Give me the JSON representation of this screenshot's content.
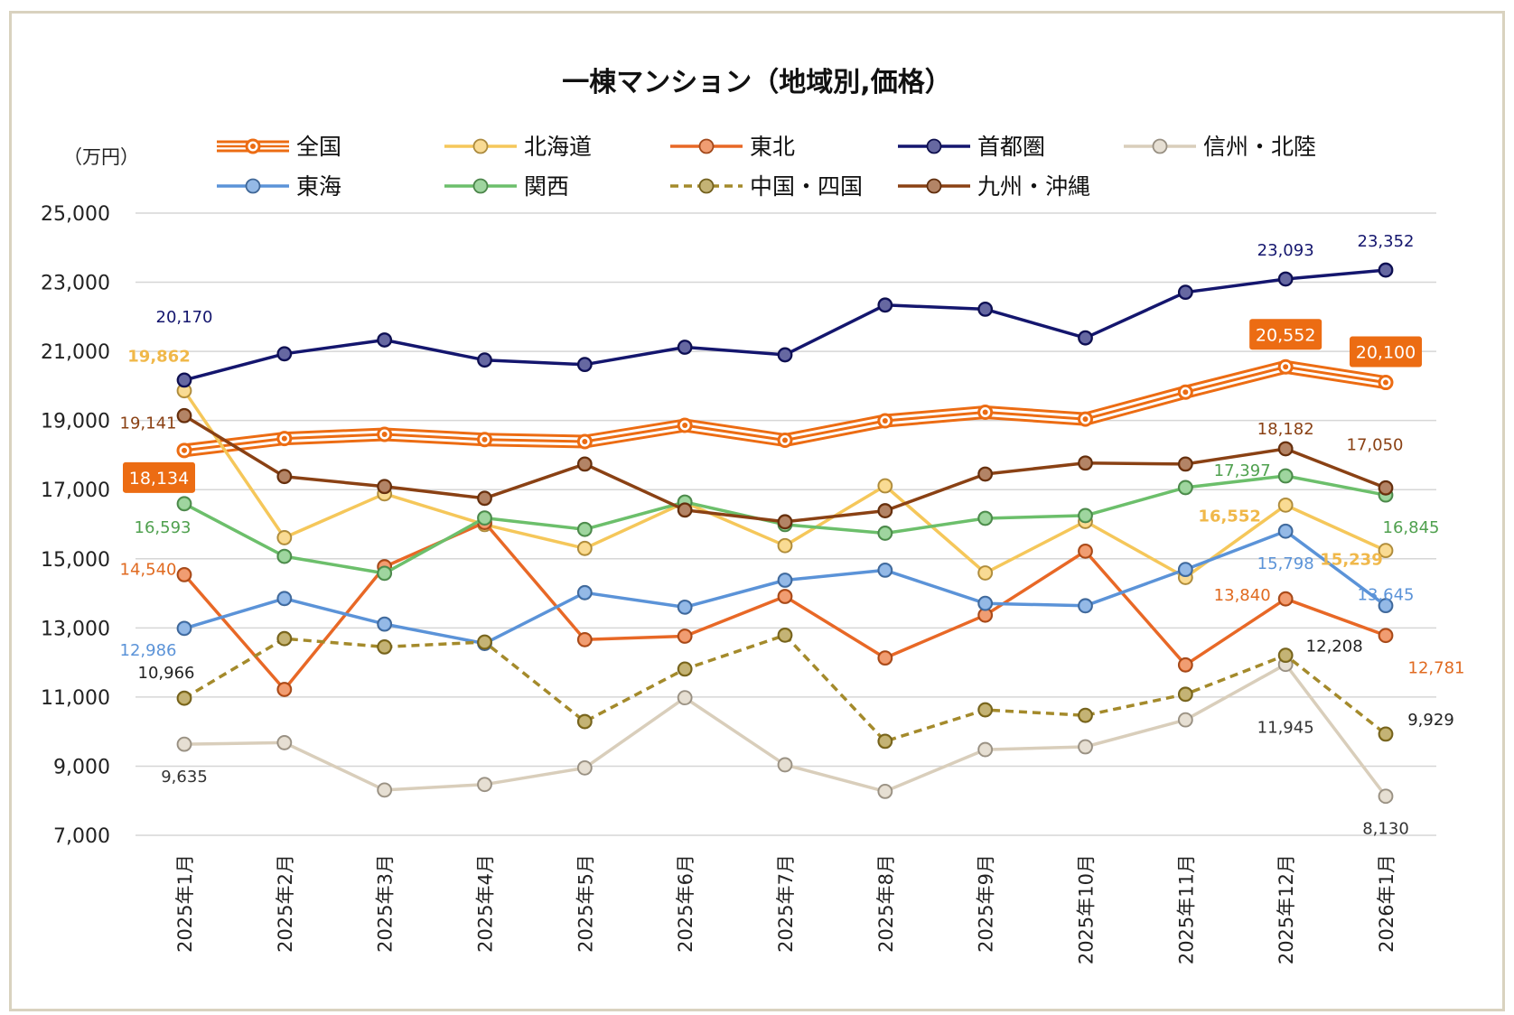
{
  "chart_data": {
    "type": "line",
    "title": "一棟マンション（地域別,価格）",
    "unit_label": "（万円）",
    "ylim": [
      7000,
      25000
    ],
    "yticks": [
      7000,
      9000,
      11000,
      13000,
      15000,
      17000,
      19000,
      21000,
      23000,
      25000
    ],
    "ytick_labels": [
      "7,000",
      "9,000",
      "11,000",
      "13,000",
      "15,000",
      "17,000",
      "19,000",
      "21,000",
      "23,000",
      "25,000"
    ],
    "grid": true,
    "legend_position": "top",
    "categories": [
      "2025年1月",
      "2025年2月",
      "2025年3月",
      "2025年4月",
      "2025年5月",
      "2025年6月",
      "2025年7月",
      "2025年8月",
      "2025年9月",
      "2025年10月",
      "2025年11月",
      "2025年12月",
      "2026年1月"
    ],
    "series": [
      {
        "name": "全国",
        "color": "#ec6c13",
        "style": "triple",
        "values": [
          18134,
          18480,
          18600,
          18450,
          18390,
          18860,
          18430,
          18990,
          19240,
          19040,
          19820,
          20552,
          20100
        ],
        "labels": [
          {
            "i": 0,
            "text": "18,134"
          },
          {
            "i": 11,
            "text": "20,552"
          },
          {
            "i": 12,
            "text": "20,100"
          }
        ]
      },
      {
        "name": "北海道",
        "color": "#f5c75a",
        "style": "solid",
        "values": [
          19862,
          15610,
          16880,
          15990,
          15300,
          16630,
          15380,
          17110,
          14590,
          16080,
          14460,
          16552,
          15239
        ],
        "labels": [
          {
            "i": 0,
            "text": "19,862"
          },
          {
            "i": 11,
            "text": "16,552"
          },
          {
            "i": 12,
            "text": "15,239"
          }
        ]
      },
      {
        "name": "東北",
        "color": "#e86826",
        "style": "solid",
        "values": [
          14540,
          11220,
          14770,
          16050,
          12660,
          12760,
          13910,
          12130,
          13370,
          15220,
          11930,
          13840,
          12781
        ],
        "labels": [
          {
            "i": 0,
            "text": "14,540"
          },
          {
            "i": 11,
            "text": "13,840"
          },
          {
            "i": 12,
            "text": "12,781"
          }
        ]
      },
      {
        "name": "首都圏",
        "color": "#14166e",
        "style": "solid",
        "values": [
          20170,
          20930,
          21330,
          20750,
          20620,
          21120,
          20900,
          22340,
          22220,
          21390,
          22710,
          23093,
          23352
        ],
        "labels": [
          {
            "i": 0,
            "text": "20,170"
          },
          {
            "i": 11,
            "text": "23,093"
          },
          {
            "i": 12,
            "text": "23,352"
          }
        ]
      },
      {
        "name": "信州・北陸",
        "color": "#d9cebb",
        "style": "solid",
        "values": [
          9635,
          9680,
          8310,
          8470,
          8950,
          10980,
          9040,
          8270,
          9480,
          9560,
          10340,
          11945,
          8130
        ],
        "labels": [
          {
            "i": 0,
            "text": "9,635"
          },
          {
            "i": 11,
            "text": "11,945"
          },
          {
            "i": 12,
            "text": "8,130"
          }
        ]
      },
      {
        "name": "東海",
        "color": "#5b93d8",
        "style": "solid",
        "values": [
          12986,
          13850,
          13110,
          12550,
          14020,
          13600,
          14380,
          14670,
          13710,
          13640,
          14690,
          15798,
          13645
        ],
        "labels": [
          {
            "i": 0,
            "text": "12,986"
          },
          {
            "i": 11,
            "text": "15,798"
          },
          {
            "i": 12,
            "text": "13,645"
          }
        ]
      },
      {
        "name": "関西",
        "color": "#6cbf6b",
        "style": "solid",
        "values": [
          16593,
          15070,
          14580,
          16180,
          15850,
          16640,
          15990,
          15740,
          16170,
          16250,
          17060,
          17397,
          16845
        ],
        "labels": [
          {
            "i": 0,
            "text": "16,593"
          },
          {
            "i": 11,
            "text": "17,397"
          },
          {
            "i": 12,
            "text": "16,845"
          }
        ]
      },
      {
        "name": "中国・四国",
        "color": "#a48a2b",
        "style": "dashed",
        "values": [
          10966,
          12690,
          12450,
          12590,
          10290,
          11810,
          12790,
          9720,
          10630,
          10470,
          11080,
          12208,
          9929
        ],
        "labels": [
          {
            "i": 0,
            "text": "10,966"
          },
          {
            "i": 11,
            "text": "12,208"
          },
          {
            "i": 12,
            "text": "9,929"
          }
        ]
      },
      {
        "name": "九州・沖縄",
        "color": "#8a4114",
        "style": "solid",
        "values": [
          19141,
          17380,
          17090,
          16750,
          17740,
          16410,
          16070,
          16390,
          17450,
          17770,
          17740,
          18182,
          17050
        ],
        "labels": [
          {
            "i": 0,
            "text": "19,141"
          },
          {
            "i": 11,
            "text": "18,182"
          },
          {
            "i": 12,
            "text": "17,050"
          }
        ]
      }
    ]
  }
}
